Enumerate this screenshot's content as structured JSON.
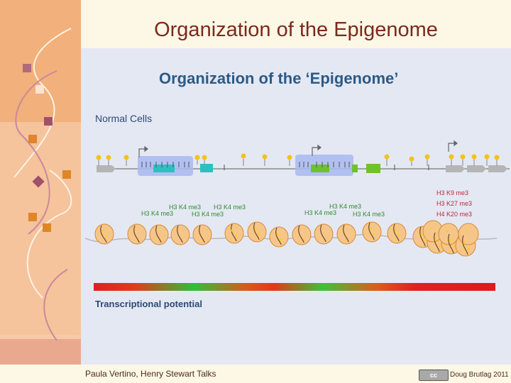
{
  "slide": {
    "title": "Organization of the Epigenome",
    "panel_title": "Organization of the ‘Epigenome’",
    "section_label": "Normal Cells",
    "transcriptional_label": "Transcriptional potential",
    "footer_left": "Paula Vertino, Henry Stewart Talks",
    "footer_right": "Doug Brutlag 2011",
    "license_badge": "cc"
  },
  "histone_marks": {
    "green": [
      {
        "text": "H3 K4 me3"
      },
      {
        "text": "H3 K4 me3"
      },
      {
        "text": "H3 K4 me3"
      },
      {
        "text": "H3 K4 me3"
      },
      {
        "text": "H3 K4 me3"
      },
      {
        "text": "H3 K4 me3"
      },
      {
        "text": "H3 K4 me3"
      }
    ],
    "red": [
      {
        "text": "H3 K9 me3"
      },
      {
        "text": "H3 K27 me3"
      },
      {
        "text": "H4 K20 me3"
      }
    ]
  },
  "colors": {
    "accent": "#7a2a1c",
    "panel_title": "#2c5a86",
    "green_mark": "#2e8a2e",
    "red_mark": "#b52a3a"
  }
}
